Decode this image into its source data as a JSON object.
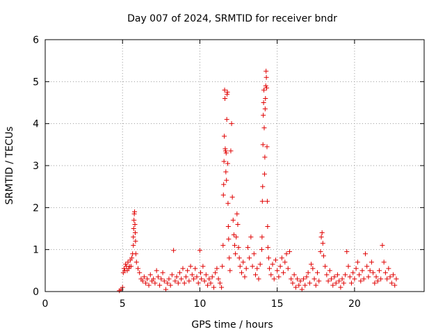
{
  "chart_data": {
    "type": "scatter",
    "title": "Day 007 of 2024, SRMTID for receiver bndr",
    "xlabel": "GPS time / hours",
    "ylabel": "SRMTID / TECUs",
    "xlim": [
      0,
      24.5
    ],
    "ylim": [
      0,
      6
    ],
    "xticks": [
      "0",
      "5",
      "10",
      "15",
      "20"
    ],
    "yticks": [
      "0",
      "1",
      "2",
      "3",
      "4",
      "5",
      "6"
    ],
    "grid": true,
    "marker": "+",
    "color": "#e00000",
    "series": [
      {
        "name": "SRMTID",
        "points": [
          [
            4.8,
            0.02
          ],
          [
            4.9,
            0.05
          ],
          [
            5.0,
            0.1
          ],
          [
            5.05,
            0.45
          ],
          [
            5.1,
            0.55
          ],
          [
            5.15,
            0.5
          ],
          [
            5.2,
            0.65
          ],
          [
            5.25,
            0.6
          ],
          [
            5.3,
            0.5
          ],
          [
            5.35,
            0.7
          ],
          [
            5.4,
            0.55
          ],
          [
            5.45,
            0.6
          ],
          [
            5.5,
            0.75
          ],
          [
            5.55,
            0.6
          ],
          [
            5.6,
            0.8
          ],
          [
            5.65,
            0.9
          ],
          [
            5.7,
            1.1
          ],
          [
            5.7,
            1.3
          ],
          [
            5.72,
            1.5
          ],
          [
            5.74,
            1.7
          ],
          [
            5.76,
            1.85
          ],
          [
            5.78,
            1.9
          ],
          [
            5.8,
            1.6
          ],
          [
            5.82,
            1.4
          ],
          [
            5.84,
            1.2
          ],
          [
            5.86,
            0.9
          ],
          [
            5.9,
            0.7
          ],
          [
            6.0,
            0.55
          ],
          [
            6.1,
            0.45
          ],
          [
            6.2,
            0.3
          ],
          [
            6.3,
            0.25
          ],
          [
            6.4,
            0.35
          ],
          [
            6.5,
            0.2
          ],
          [
            6.6,
            0.3
          ],
          [
            6.7,
            0.15
          ],
          [
            6.8,
            0.4
          ],
          [
            6.9,
            0.25
          ],
          [
            7.0,
            0.3
          ],
          [
            7.1,
            0.2
          ],
          [
            7.2,
            0.5
          ],
          [
            7.3,
            0.35
          ],
          [
            7.4,
            0.15
          ],
          [
            7.5,
            0.3
          ],
          [
            7.6,
            0.45
          ],
          [
            7.7,
            0.25
          ],
          [
            7.8,
            0.05
          ],
          [
            7.9,
            0.2
          ],
          [
            8.0,
            0.3
          ],
          [
            8.1,
            0.15
          ],
          [
            8.2,
            0.4
          ],
          [
            8.3,
            0.98
          ],
          [
            8.4,
            0.25
          ],
          [
            8.5,
            0.35
          ],
          [
            8.6,
            0.2
          ],
          [
            8.7,
            0.45
          ],
          [
            8.8,
            0.3
          ],
          [
            8.9,
            0.55
          ],
          [
            9.0,
            0.2
          ],
          [
            9.1,
            0.35
          ],
          [
            9.2,
            0.5
          ],
          [
            9.3,
            0.25
          ],
          [
            9.4,
            0.6
          ],
          [
            9.5,
            0.4
          ],
          [
            9.6,
            0.3
          ],
          [
            9.7,
            0.55
          ],
          [
            9.8,
            0.35
          ],
          [
            9.9,
            0.2
          ],
          [
            10.0,
            0.98
          ],
          [
            10.05,
            0.45
          ],
          [
            10.1,
            0.3
          ],
          [
            10.2,
            0.6
          ],
          [
            10.3,
            0.25
          ],
          [
            10.4,
            0.4
          ],
          [
            10.5,
            0.15
          ],
          [
            10.6,
            0.3
          ],
          [
            10.7,
            0.2
          ],
          [
            10.8,
            0.35
          ],
          [
            10.9,
            0.1
          ],
          [
            11.0,
            0.45
          ],
          [
            11.1,
            0.55
          ],
          [
            11.2,
            0.3
          ],
          [
            11.3,
            0.2
          ],
          [
            11.4,
            0.1
          ],
          [
            11.45,
            0.6
          ],
          [
            11.5,
            1.1
          ],
          [
            11.52,
            2.3
          ],
          [
            11.54,
            2.55
          ],
          [
            11.56,
            3.1
          ],
          [
            11.58,
            3.7
          ],
          [
            11.6,
            4.8
          ],
          [
            11.62,
            4.6
          ],
          [
            11.64,
            3.4
          ],
          [
            11.66,
            3.35
          ],
          [
            11.68,
            2.85
          ],
          [
            11.7,
            3.3
          ],
          [
            11.72,
            2.65
          ],
          [
            11.74,
            4.1
          ],
          [
            11.76,
            4.7
          ],
          [
            11.78,
            4.75
          ],
          [
            11.8,
            3.05
          ],
          [
            11.82,
            2.1
          ],
          [
            11.84,
            1.55
          ],
          [
            11.86,
            1.25
          ],
          [
            11.9,
            0.8
          ],
          [
            11.95,
            0.5
          ],
          [
            12.0,
            3.35
          ],
          [
            12.05,
            4.0
          ],
          [
            12.1,
            2.25
          ],
          [
            12.15,
            1.7
          ],
          [
            12.2,
            1.35
          ],
          [
            12.25,
            1.1
          ],
          [
            12.3,
            0.9
          ],
          [
            12.35,
            1.3
          ],
          [
            12.4,
            1.85
          ],
          [
            12.45,
            1.6
          ],
          [
            12.5,
            1.05
          ],
          [
            12.55,
            0.8
          ],
          [
            12.6,
            0.6
          ],
          [
            12.7,
            0.45
          ],
          [
            12.8,
            0.7
          ],
          [
            12.9,
            0.35
          ],
          [
            13.0,
            0.55
          ],
          [
            13.1,
            1.05
          ],
          [
            13.2,
            0.8
          ],
          [
            13.3,
            1.3
          ],
          [
            13.4,
            0.6
          ],
          [
            13.5,
            0.9
          ],
          [
            13.6,
            0.4
          ],
          [
            13.7,
            0.55
          ],
          [
            13.8,
            0.3
          ],
          [
            13.9,
            0.65
          ],
          [
            14.0,
            1.0
          ],
          [
            14.02,
            1.3
          ],
          [
            14.04,
            2.15
          ],
          [
            14.06,
            2.5
          ],
          [
            14.08,
            3.5
          ],
          [
            14.1,
            4.2
          ],
          [
            14.12,
            4.5
          ],
          [
            14.14,
            4.8
          ],
          [
            14.16,
            3.9
          ],
          [
            14.18,
            2.8
          ],
          [
            14.2,
            3.2
          ],
          [
            14.22,
            4.35
          ],
          [
            14.24,
            4.6
          ],
          [
            14.26,
            4.9
          ],
          [
            14.28,
            5.25
          ],
          [
            14.3,
            5.1
          ],
          [
            14.32,
            4.85
          ],
          [
            14.34,
            3.45
          ],
          [
            14.36,
            2.15
          ],
          [
            14.38,
            1.55
          ],
          [
            14.4,
            1.05
          ],
          [
            14.45,
            0.8
          ],
          [
            14.5,
            0.55
          ],
          [
            14.6,
            0.4
          ],
          [
            14.7,
            0.65
          ],
          [
            14.8,
            0.3
          ],
          [
            14.9,
            0.75
          ],
          [
            15.0,
            0.5
          ],
          [
            15.1,
            0.35
          ],
          [
            15.2,
            0.6
          ],
          [
            15.3,
            0.8
          ],
          [
            15.4,
            0.45
          ],
          [
            15.5,
            0.7
          ],
          [
            15.6,
            0.9
          ],
          [
            15.7,
            0.55
          ],
          [
            15.8,
            0.95
          ],
          [
            15.9,
            0.3
          ],
          [
            16.0,
            0.2
          ],
          [
            16.1,
            0.4
          ],
          [
            16.2,
            0.1
          ],
          [
            16.3,
            0.3
          ],
          [
            16.4,
            0.15
          ],
          [
            16.5,
            0.25
          ],
          [
            16.6,
            0.05
          ],
          [
            16.7,
            0.3
          ],
          [
            16.8,
            0.15
          ],
          [
            16.9,
            0.35
          ],
          [
            17.0,
            0.45
          ],
          [
            17.1,
            0.2
          ],
          [
            17.2,
            0.65
          ],
          [
            17.3,
            0.55
          ],
          [
            17.4,
            0.3
          ],
          [
            17.5,
            0.15
          ],
          [
            17.6,
            0.45
          ],
          [
            17.7,
            0.25
          ],
          [
            17.8,
            0.95
          ],
          [
            17.85,
            1.3
          ],
          [
            17.9,
            1.4
          ],
          [
            17.95,
            1.15
          ],
          [
            18.0,
            0.85
          ],
          [
            18.1,
            0.6
          ],
          [
            18.2,
            0.4
          ],
          [
            18.3,
            0.25
          ],
          [
            18.4,
            0.5
          ],
          [
            18.5,
            0.3
          ],
          [
            18.6,
            0.15
          ],
          [
            18.7,
            0.35
          ],
          [
            18.8,
            0.2
          ],
          [
            18.9,
            0.4
          ],
          [
            19.0,
            0.25
          ],
          [
            19.1,
            0.1
          ],
          [
            19.2,
            0.3
          ],
          [
            19.3,
            0.2
          ],
          [
            19.4,
            0.4
          ],
          [
            19.5,
            0.95
          ],
          [
            19.6,
            0.6
          ],
          [
            19.7,
            0.35
          ],
          [
            19.8,
            0.2
          ],
          [
            19.9,
            0.45
          ],
          [
            20.0,
            0.3
          ],
          [
            20.1,
            0.55
          ],
          [
            20.2,
            0.7
          ],
          [
            20.3,
            0.4
          ],
          [
            20.4,
            0.25
          ],
          [
            20.5,
            0.5
          ],
          [
            20.6,
            0.3
          ],
          [
            20.7,
            0.9
          ],
          [
            20.8,
            0.6
          ],
          [
            20.9,
            0.35
          ],
          [
            21.0,
            0.5
          ],
          [
            21.1,
            0.7
          ],
          [
            21.2,
            0.45
          ],
          [
            21.3,
            0.2
          ],
          [
            21.4,
            0.35
          ],
          [
            21.5,
            0.25
          ],
          [
            21.6,
            0.5
          ],
          [
            21.7,
            0.3
          ],
          [
            21.8,
            1.1
          ],
          [
            21.9,
            0.7
          ],
          [
            22.0,
            0.45
          ],
          [
            22.1,
            0.3
          ],
          [
            22.2,
            0.55
          ],
          [
            22.3,
            0.35
          ],
          [
            22.4,
            0.2
          ],
          [
            22.5,
            0.4
          ],
          [
            22.6,
            0.15
          ],
          [
            22.7,
            0.3
          ]
        ]
      }
    ]
  }
}
